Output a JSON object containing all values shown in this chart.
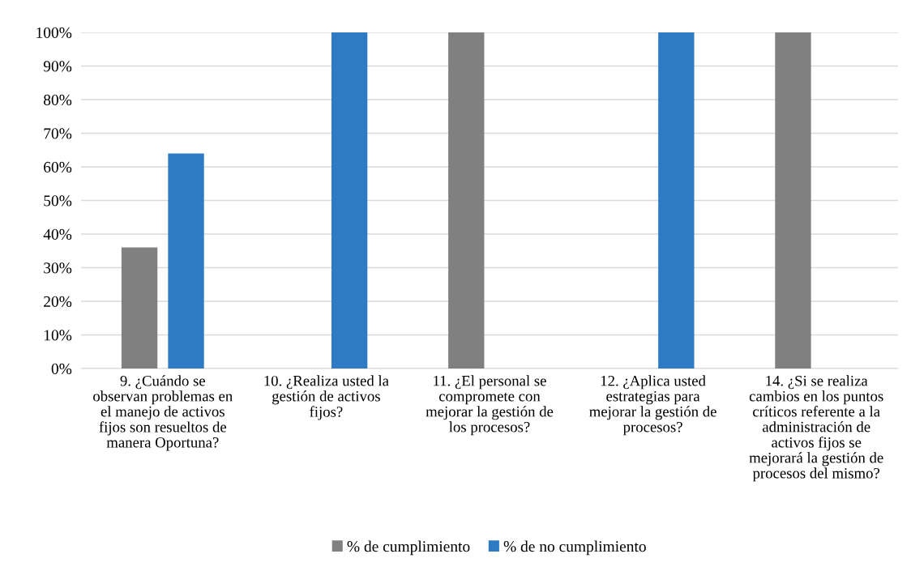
{
  "chart_data": {
    "type": "bar",
    "categories": [
      "9. ¿Cuándo se\nobservan problemas en\nel manejo de activos\nfijos son resueltos de\nmanera Oportuna?",
      "10. ¿Realiza usted la\ngestión de activos\nfijos?",
      "11. ¿El personal se\ncompromete con\nmejorar la gestión de\nlos procesos?",
      "12. ¿Aplica usted\nestrategias para\nmejorar la gestión de\nprocesos?",
      "14. ¿Si se realiza\ncambios en los puntos\ncríticos referente a la\nadministración de\nactivos fijos se\nmejorará la gestión de\nprocesos del mismo?"
    ],
    "series": [
      {
        "name": "% de cumplimiento",
        "color": "#808080",
        "values": [
          36,
          0,
          100,
          0,
          100
        ]
      },
      {
        "name": "% de no cumplimiento",
        "color": "#2e7bc4",
        "values": [
          64,
          100,
          0,
          100,
          0
        ]
      }
    ],
    "ylim": [
      0,
      100
    ],
    "yticks": [
      {
        "value": 0,
        "label": "0%"
      },
      {
        "value": 10,
        "label": "10%"
      },
      {
        "value": 20,
        "label": "20%"
      },
      {
        "value": 30,
        "label": "30%"
      },
      {
        "value": 40,
        "label": "40%"
      },
      {
        "value": 50,
        "label": "50%"
      },
      {
        "value": 60,
        "label": "60%"
      },
      {
        "value": 70,
        "label": "70%"
      },
      {
        "value": 80,
        "label": "80%"
      },
      {
        "value": 90,
        "label": "90%"
      },
      {
        "value": 100,
        "label": "100%"
      }
    ],
    "grid": "y",
    "legend": "bottom"
  }
}
